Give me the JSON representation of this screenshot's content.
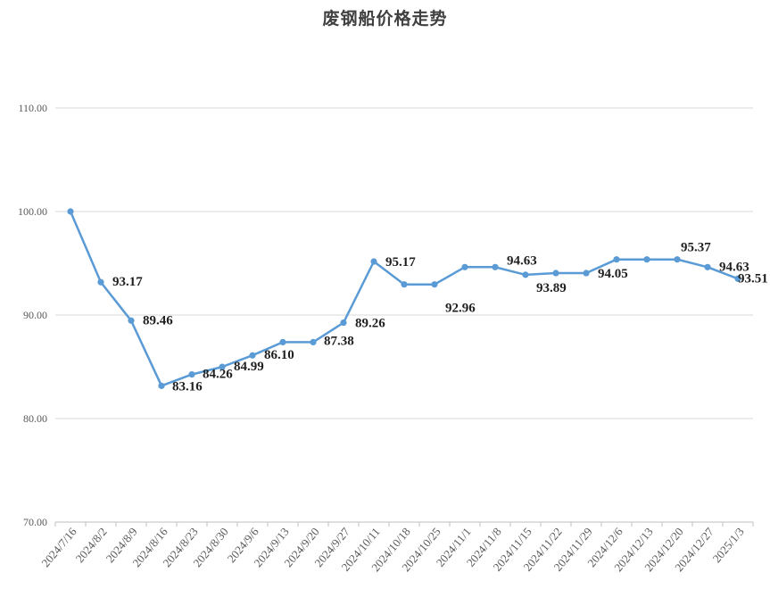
{
  "chart_data": {
    "type": "line",
    "title": "废钢船价格走势",
    "xlabel": "",
    "ylabel": "",
    "categories": [
      "2024/7/16",
      "2024/8/2",
      "2024/8/9",
      "2024/8/16",
      "2024/8/23",
      "2024/8/30",
      "2024/9/6",
      "2024/9/13",
      "2024/9/20",
      "2024/9/27",
      "2024/10/11",
      "2024/10/18",
      "2024/10/25",
      "2024/11/1",
      "2024/11/8",
      "2024/11/15",
      "2024/11/22",
      "2024/11/29",
      "2024/12/6",
      "2024/12/13",
      "2024/12/20",
      "2024/12/27",
      "2025/1/3"
    ],
    "series": [
      {
        "values": [
          100.0,
          93.17,
          89.46,
          83.16,
          84.26,
          84.99,
          86.1,
          87.38,
          87.38,
          89.26,
          95.17,
          92.96,
          92.96,
          94.63,
          94.63,
          93.89,
          94.05,
          94.05,
          95.37,
          95.37,
          95.37,
          94.63,
          93.51
        ],
        "data_labels": [
          null,
          "93.17",
          "89.46",
          "83.16",
          "84.26",
          "84.99",
          "86.10",
          null,
          "87.38",
          "89.26",
          "95.17",
          null,
          "92.96",
          null,
          "94.63",
          "93.89",
          null,
          "94.05",
          null,
          null,
          "95.37",
          "94.63",
          "93.51"
        ],
        "color": "#5B9BD5",
        "markers": true
      }
    ],
    "ylim": [
      70,
      110
    ],
    "yticks": [
      70,
      80,
      90,
      100,
      110
    ],
    "ytick_labels": [
      "70.00",
      "80.00",
      "90.00",
      "100.00",
      "110.00"
    ],
    "grid": true,
    "legend": "none"
  }
}
